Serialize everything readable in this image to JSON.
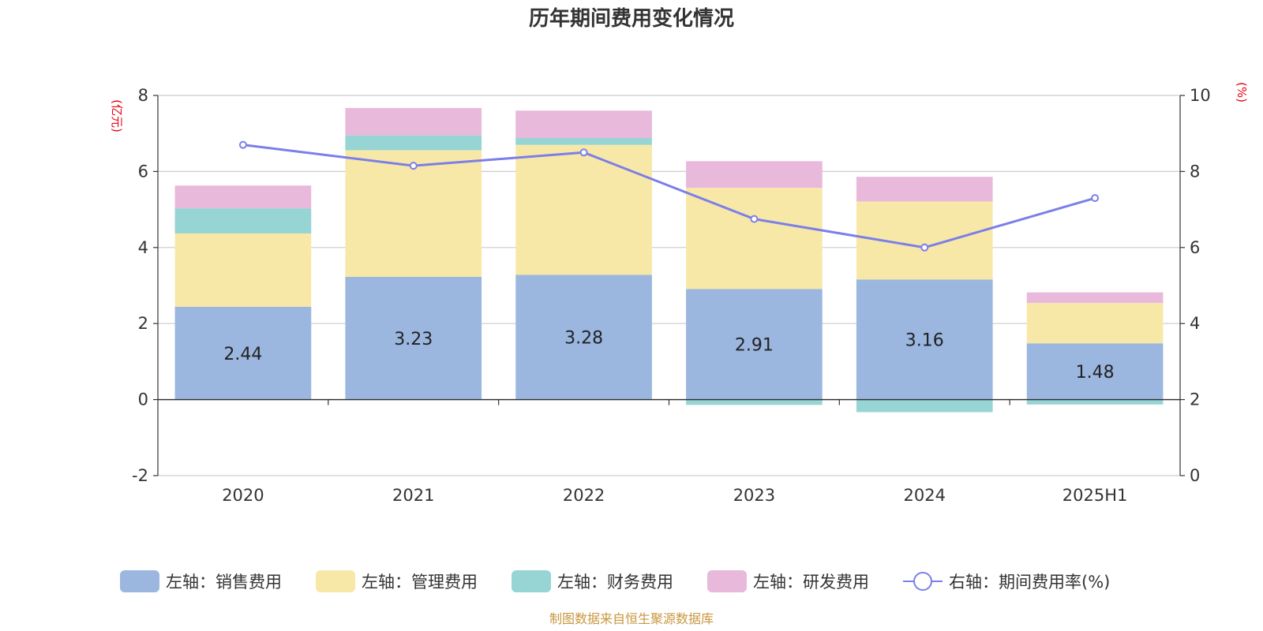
{
  "chart_data": {
    "type": "bar",
    "stacked": true,
    "title": "历年期间费用变化情况",
    "categories": [
      "2020",
      "2021",
      "2022",
      "2023",
      "2024",
      "2025H1"
    ],
    "left_axis": {
      "unit": "(亿元)",
      "ylim": [
        -2,
        8
      ],
      "ticks": [
        "-2",
        "0",
        "2",
        "4",
        "6",
        "8"
      ]
    },
    "right_axis": {
      "unit": "(%)",
      "ylim": [
        0,
        10
      ],
      "ticks": [
        "0",
        "2",
        "4",
        "6",
        "8",
        "10"
      ]
    },
    "series": [
      {
        "name": "左轴：销售费用",
        "axis": "left",
        "type": "bar",
        "color": "#9bb7e0",
        "values": [
          2.44,
          3.23,
          3.28,
          2.91,
          3.16,
          1.48
        ]
      },
      {
        "name": "左轴：管理费用",
        "axis": "left",
        "type": "bar",
        "color": "#f8e8a8",
        "values": [
          1.93,
          3.33,
          3.42,
          2.66,
          2.05,
          1.06
        ]
      },
      {
        "name": "左轴：财务费用",
        "axis": "left",
        "type": "bar",
        "color": "#97d4d4",
        "values": [
          0.66,
          0.39,
          0.18,
          -0.14,
          -0.33,
          -0.13
        ]
      },
      {
        "name": "左轴：研发费用",
        "axis": "left",
        "type": "bar",
        "color": "#e8b9da",
        "values": [
          0.6,
          0.72,
          0.72,
          0.7,
          0.65,
          0.28
        ]
      },
      {
        "name": "右轴：期间费用率(%)",
        "axis": "right",
        "type": "line",
        "color": "#7b7fe8",
        "values": [
          8.7,
          8.15,
          8.5,
          6.75,
          6.0,
          7.3
        ]
      }
    ],
    "data_labels": [
      "2.44",
      "3.23",
      "3.28",
      "2.91",
      "3.16",
      "1.48"
    ],
    "grid": true,
    "legend_position": "bottom",
    "source": "制图数据来自恒生聚源数据库"
  }
}
